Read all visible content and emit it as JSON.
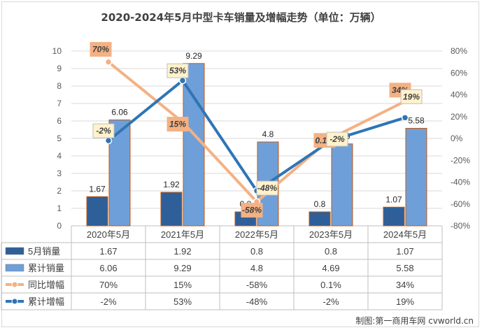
{
  "title": "2020-2024年5月中型卡车销量及增幅走势（单位：万辆）",
  "credit": "制图:第一商用车网 cvworld.cn",
  "chart_data": {
    "type": "bar",
    "categories": [
      "2020年5月",
      "2021年5月",
      "2022年5月",
      "2023年5月",
      "2024年5月"
    ],
    "y_left": {
      "ylim": [
        0,
        10
      ],
      "ticks": [
        "0",
        "1",
        "2",
        "3",
        "4",
        "5",
        "6",
        "7",
        "8",
        "9",
        "10"
      ]
    },
    "y_right": {
      "ylim": [
        -80,
        80
      ],
      "ticks": [
        "-80%",
        "-60%",
        "-40%",
        "-20%",
        "0%",
        "20%",
        "40%",
        "60%",
        "80%"
      ]
    },
    "grid": true,
    "series": [
      {
        "name": "5月销量",
        "type": "bar",
        "axis": "left",
        "color": "#2e5f99",
        "values": [
          1.67,
          1.92,
          0.8,
          0.8,
          1.07
        ],
        "labels": [
          "1.67",
          "1.92",
          "0.8",
          "0.8",
          "1.07"
        ]
      },
      {
        "name": "累计销量",
        "type": "bar",
        "axis": "left",
        "color": "#6f9fd8",
        "values": [
          6.06,
          9.29,
          4.8,
          4.69,
          5.58
        ],
        "labels": [
          "6.06",
          "9.29",
          "4.8",
          "4.69",
          "5.58"
        ]
      },
      {
        "name": "同比增幅",
        "type": "line",
        "axis": "right",
        "color": "#f4b183",
        "values": [
          70,
          15,
          -58,
          0.1,
          34
        ],
        "labels": [
          "70%",
          "15%",
          "-58%",
          "0.1%",
          "34%"
        ]
      },
      {
        "name": "累计增幅",
        "type": "line",
        "axis": "right",
        "color": "#2e75b6",
        "values": [
          -2,
          53,
          -48,
          -2,
          19
        ],
        "labels": [
          "-2%",
          "53%",
          "-48%",
          "-2%",
          "19%"
        ]
      }
    ]
  }
}
